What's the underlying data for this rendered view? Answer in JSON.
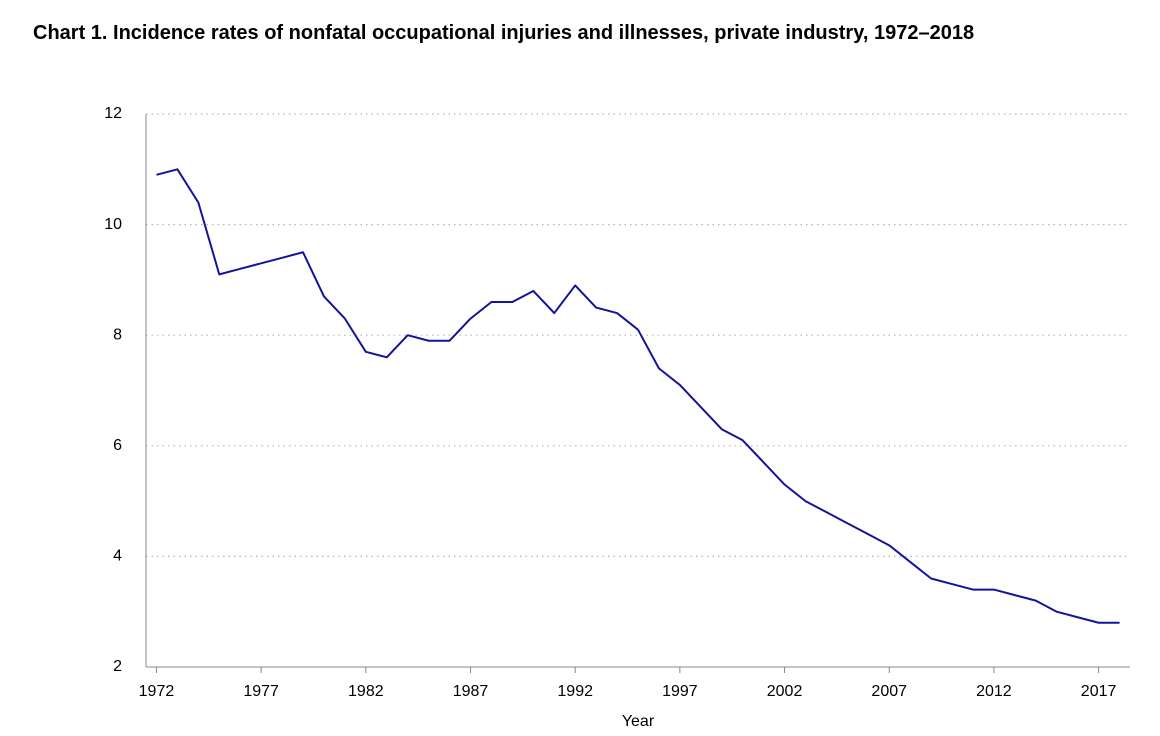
{
  "chart_data": {
    "type": "line",
    "title": "Chart 1. Incidence rates of nonfatal occupational injuries and illnesses, private industry, 1972–2018",
    "x_label": "Year",
    "x": [
      1972,
      1973,
      1974,
      1975,
      1976,
      1977,
      1978,
      1979,
      1980,
      1981,
      1982,
      1983,
      1984,
      1985,
      1986,
      1987,
      1988,
      1989,
      1990,
      1991,
      1992,
      1993,
      1994,
      1995,
      1996,
      1997,
      1998,
      1999,
      2000,
      2001,
      2002,
      2003,
      2004,
      2005,
      2006,
      2007,
      2008,
      2009,
      2010,
      2011,
      2012,
      2013,
      2014,
      2015,
      2016,
      2017,
      2018
    ],
    "series": [
      {
        "color": "#14149b",
        "values": [
          10.9,
          11.0,
          10.4,
          9.1,
          9.2,
          9.3,
          9.4,
          9.5,
          8.7,
          8.3,
          7.7,
          7.6,
          8.0,
          7.9,
          7.9,
          8.3,
          8.6,
          8.6,
          8.8,
          8.4,
          8.9,
          8.5,
          8.4,
          8.1,
          7.4,
          7.1,
          6.7,
          6.3,
          6.1,
          5.7,
          5.3,
          5.0,
          4.8,
          4.6,
          4.4,
          4.2,
          3.9,
          3.6,
          3.5,
          3.4,
          3.4,
          3.3,
          3.2,
          3.0,
          2.9,
          2.8,
          2.8
        ]
      }
    ],
    "xlim": [
      1971.5,
      2018.5
    ],
    "xticks": [
      1972,
      1977,
      1982,
      1987,
      1992,
      1997,
      2002,
      2007,
      2012,
      2017
    ],
    "ylim": [
      2,
      12
    ],
    "yticks": [
      2,
      4,
      6,
      8,
      10,
      12
    ],
    "grid": true
  }
}
